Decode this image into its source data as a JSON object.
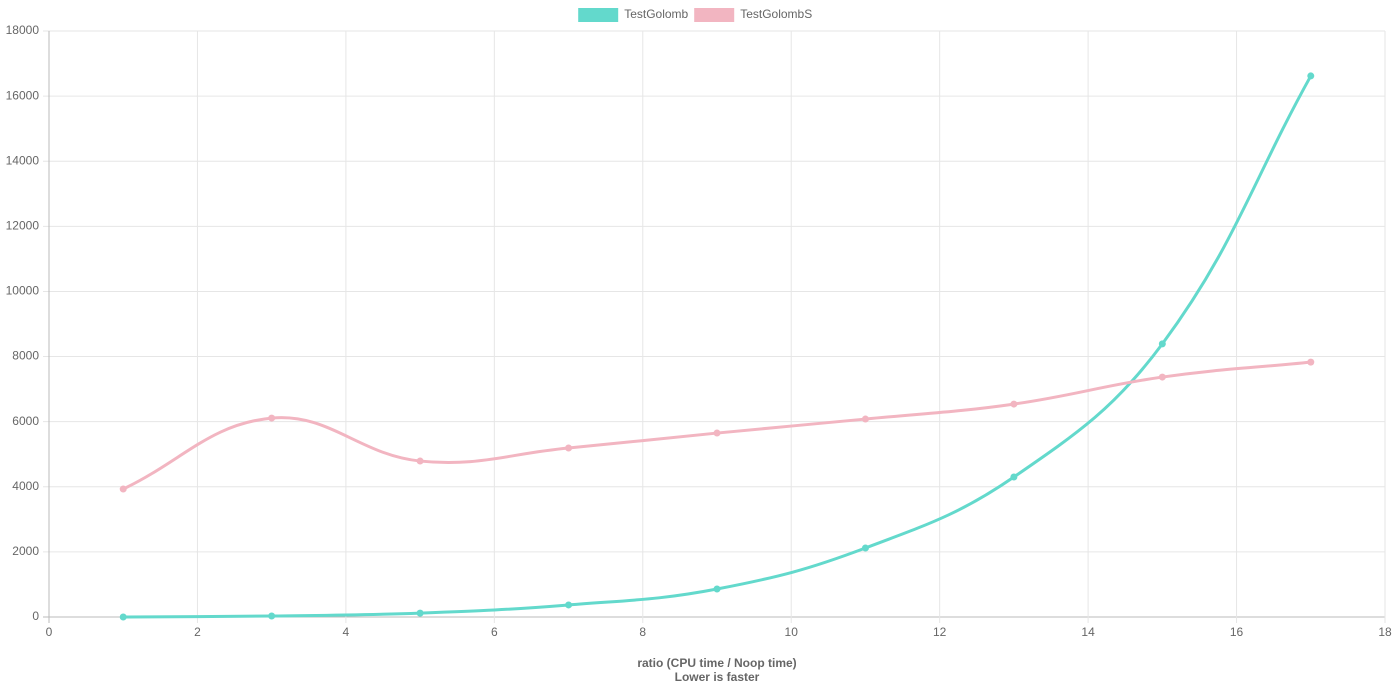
{
  "chart_data": {
    "type": "line",
    "x": [
      1,
      3,
      5,
      7,
      9,
      11,
      13,
      15,
      17
    ],
    "series": [
      {
        "name": "TestGolomb",
        "color": "#63d9cc",
        "values": [
          0,
          30,
          120,
          370,
          860,
          2120,
          4300,
          8390,
          16620
        ]
      },
      {
        "name": "TestGolombS",
        "color": "#f2b5c1",
        "values": [
          3930,
          6110,
          4790,
          5190,
          5650,
          6080,
          6540,
          7370,
          7830
        ]
      }
    ],
    "x_label_lines": [
      "ratio (CPU time / Noop time)",
      "Lower is faster"
    ],
    "xlim": [
      0,
      18
    ],
    "xticks": [
      0,
      2,
      4,
      6,
      8,
      10,
      12,
      14,
      16,
      18
    ],
    "ylim": [
      0,
      18000
    ],
    "yticks": [
      0,
      2000,
      4000,
      6000,
      8000,
      10000,
      12000,
      14000,
      16000,
      18000
    ],
    "grid": true,
    "legend": "top"
  }
}
